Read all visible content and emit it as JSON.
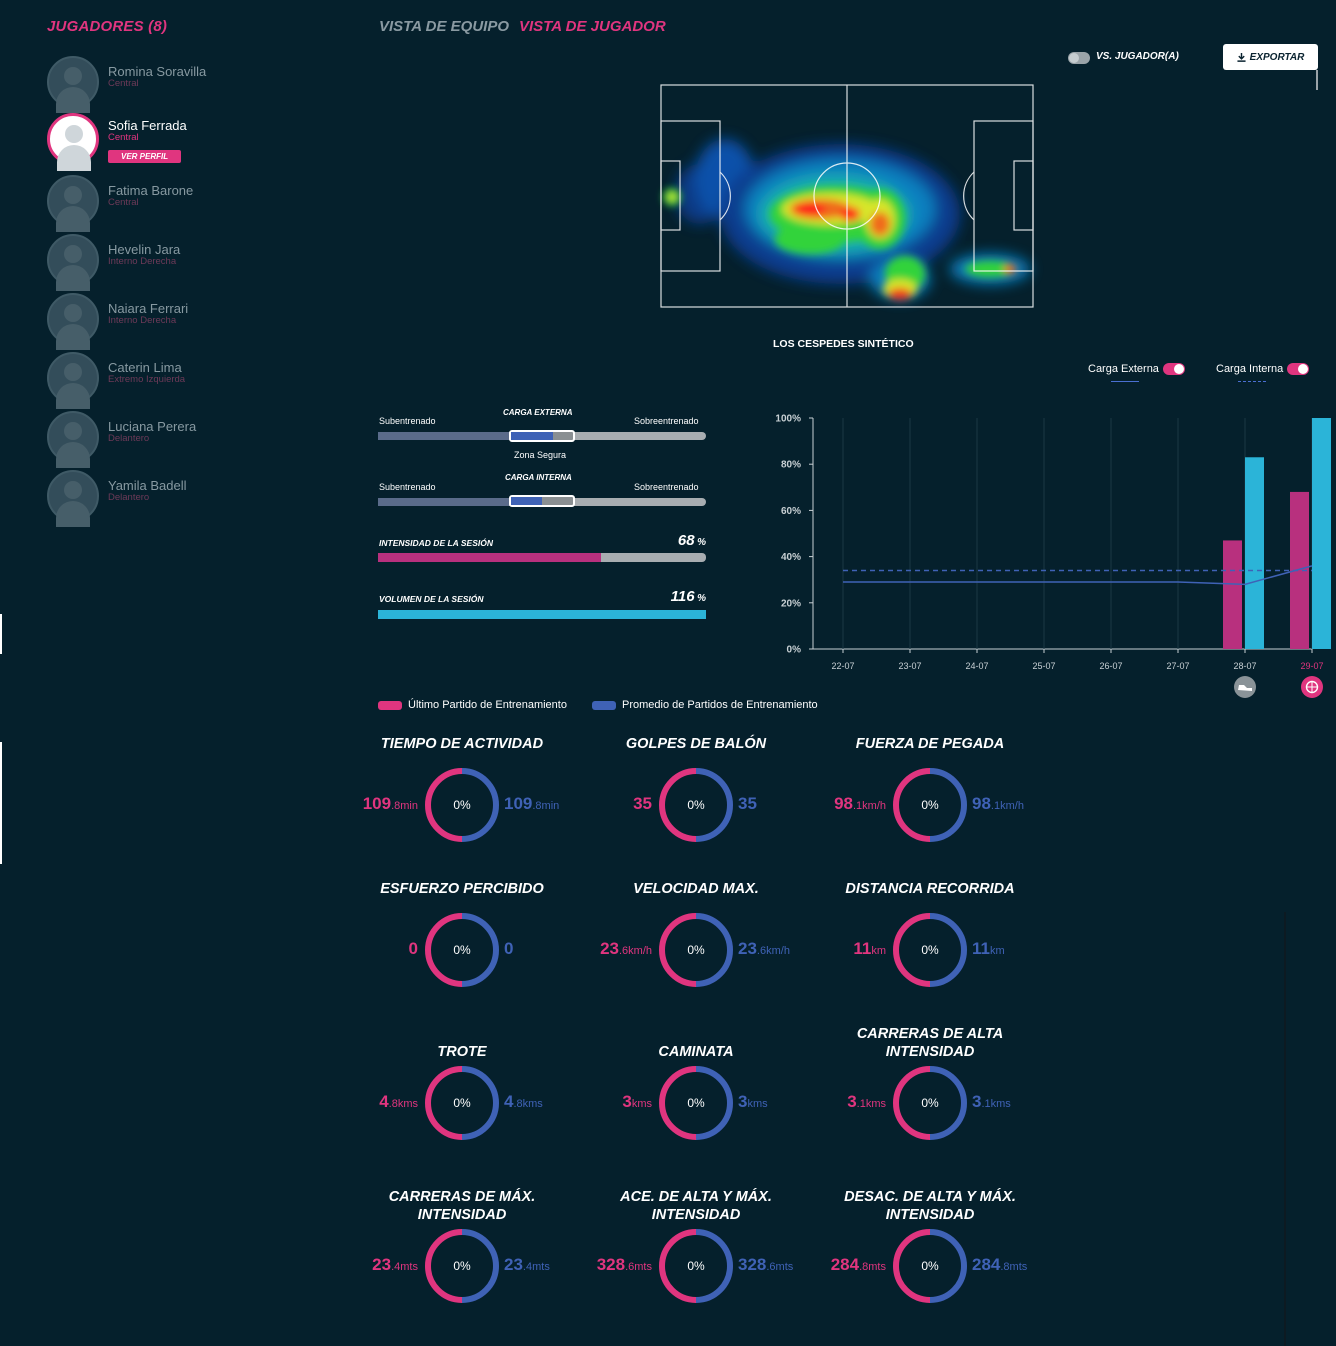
{
  "sidebar": {
    "title": "JUGADORES (8)",
    "view_profile": "VER PERFIL",
    "players": [
      {
        "name": "Romina Soravilla",
        "position": "Central"
      },
      {
        "name": "Sofia Ferrada",
        "position": "Central"
      },
      {
        "name": "Fatima Barone",
        "position": "Central"
      },
      {
        "name": "Hevelin Jara",
        "position": "Interno Derecha"
      },
      {
        "name": "Naiara Ferrari",
        "position": "Interno Derecha"
      },
      {
        "name": "Caterin Lima",
        "position": "Extremo Izquierda"
      },
      {
        "name": "Luciana Perera",
        "position": "Delantero"
      },
      {
        "name": "Yamila Badell",
        "position": "Delantero"
      }
    ]
  },
  "tabs": {
    "team": "VISTA DE EQUIPO",
    "player": "VISTA DE JUGADOR"
  },
  "toolbar": {
    "vs_label": "VS. JUGADOR(A)",
    "export_label": "EXPORTAR"
  },
  "heatmap": {
    "field_name": "LOS CESPEDES SINTÉTICO"
  },
  "load": {
    "external": {
      "title": "CARGA EXTERNA",
      "left": "Subentrenado",
      "right": "Sobreentrenado",
      "safe_zone": "Zona Segura",
      "safe_fill": 0.67
    },
    "internal": {
      "title": "CARGA INTERNA",
      "left": "Subentrenado",
      "right": "Sobreentrenado",
      "safe_fill": 0.5
    },
    "intensity": {
      "label": "INTENSIDAD DE LA SESIÓN",
      "value": "68",
      "unit": "%",
      "fraction": 0.68,
      "color": "#b8307e"
    },
    "volume": {
      "label": "VOLUMEN DE LA SESIÓN",
      "value": "116",
      "unit": "%",
      "fraction": 1.0,
      "color": "#2bb4d8"
    }
  },
  "chart_legend": {
    "external": "Carga Externa",
    "internal": "Carga Interna"
  },
  "chart_data": {
    "type": "bar",
    "categories": [
      "22-07",
      "23-07",
      "24-07",
      "25-07",
      "26-07",
      "27-07",
      "28-07",
      "29-07"
    ],
    "ylim": [
      0,
      100
    ],
    "yticks": [
      "0%",
      "20%",
      "40%",
      "60%",
      "80%",
      "100%"
    ],
    "series": [
      {
        "name": "Carga Interna",
        "color": "#b8307e",
        "values": [
          null,
          null,
          null,
          null,
          null,
          null,
          47,
          68
        ]
      },
      {
        "name": "Carga Externa",
        "color": "#2bb4d8",
        "values": [
          null,
          null,
          null,
          null,
          null,
          null,
          83,
          100
        ]
      },
      {
        "name": "Carga Externa (tendencia)",
        "style": "solid",
        "color": "#3f62b6",
        "values": [
          29,
          29,
          29,
          29,
          29,
          29,
          28,
          36
        ]
      },
      {
        "name": "Carga Interna (tendencia)",
        "style": "dashed",
        "color": "#3f62b6",
        "values": [
          34,
          34,
          34,
          34,
          34,
          34,
          34,
          34
        ]
      }
    ],
    "event_icons": [
      {
        "category": "28-07",
        "icon": "boot-icon"
      },
      {
        "category": "29-07",
        "icon": "ball-icon"
      }
    ]
  },
  "metrics_legend": {
    "last": "Último Partido de Entrenamiento",
    "avg": "Promedio de Partidos de Entrenamiento"
  },
  "colors": {
    "pink": "#e0357f",
    "blue": "#3f62b6"
  },
  "metrics": [
    {
      "title": "TIEMPO DE ACTIVIDAD",
      "left_int": "109",
      "left_dec": ".8min",
      "right_int": "109",
      "right_dec": ".8min",
      "pct": "0%"
    },
    {
      "title": "GOLPES DE BALÓN",
      "left_int": "35",
      "left_dec": "",
      "right_int": "35",
      "right_dec": "",
      "pct": "0%"
    },
    {
      "title": "FUERZA DE PEGADA",
      "left_int": "98",
      "left_dec": ".1km/h",
      "right_int": "98",
      "right_dec": ".1km/h",
      "pct": "0%"
    },
    {
      "title": "ESFUERZO PERCIBIDO",
      "left_int": "0",
      "left_dec": "",
      "right_int": "0",
      "right_dec": "",
      "pct": "0%"
    },
    {
      "title": "VELOCIDAD MAX.",
      "left_int": "23",
      "left_dec": ".6km/h",
      "right_int": "23",
      "right_dec": ".6km/h",
      "pct": "0%"
    },
    {
      "title": "DISTANCIA RECORRIDA",
      "left_int": "11",
      "left_dec": "km",
      "right_int": "11",
      "right_dec": "km",
      "pct": "0%"
    },
    {
      "title": "TROTE",
      "left_int": "4",
      "left_dec": ".8kms",
      "right_int": "4",
      "right_dec": ".8kms",
      "pct": "0%"
    },
    {
      "title": "CAMINATA",
      "left_int": "3",
      "left_dec": "kms",
      "right_int": "3",
      "right_dec": "kms",
      "pct": "0%"
    },
    {
      "title": "CARRERAS DE ALTA\nINTENSIDAD",
      "left_int": "3",
      "left_dec": ".1kms",
      "right_int": "3",
      "right_dec": ".1kms",
      "pct": "0%"
    },
    {
      "title": "CARRERAS DE MÁX.\nINTENSIDAD",
      "left_int": "23",
      "left_dec": ".4mts",
      "right_int": "23",
      "right_dec": ".4mts",
      "pct": "0%"
    },
    {
      "title": "ACE. DE ALTA Y MÁX.\nINTENSIDAD",
      "left_int": "328",
      "left_dec": ".6mts",
      "right_int": "328",
      "right_dec": ".6mts",
      "pct": "0%"
    },
    {
      "title": "DESAC. DE ALTA Y MÁX.\nINTENSIDAD",
      "left_int": "284",
      "left_dec": ".8mts",
      "right_int": "284",
      "right_dec": ".8mts",
      "pct": "0%"
    }
  ]
}
